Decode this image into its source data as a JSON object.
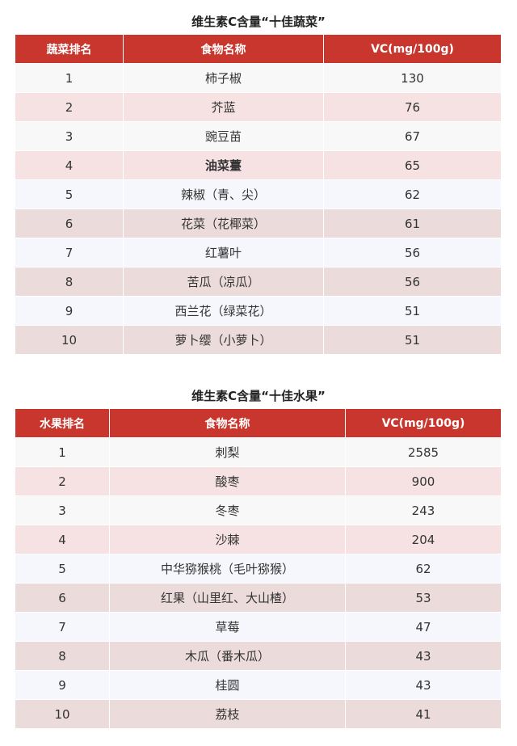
{
  "tables": [
    {
      "title": "维生素C含量“十佳蔬菜”",
      "header": [
        "蔬菜排名",
        "食物名称",
        "VC(mg/100g)"
      ],
      "rows": [
        [
          "1",
          "柿子椒",
          "130"
        ],
        [
          "2",
          "芥蓝",
          "76"
        ],
        [
          "3",
          "豌豆苗",
          "67"
        ],
        [
          "4",
          "油菜薹",
          "65"
        ],
        [
          "5",
          "辣椒（青、尖）",
          "62"
        ],
        [
          "6",
          "花菜（花椰菜）",
          "61"
        ],
        [
          "7",
          "红薯叶",
          "56"
        ],
        [
          "8",
          "苦瓜（凉瓜）",
          "56"
        ],
        [
          "9",
          "西兰花（绿菜花）",
          "51"
        ],
        [
          "10",
          "萝卜缨（小萝卜）",
          "51"
        ]
      ]
    },
    {
      "title": "维生素C含量“十佳水果”",
      "header": [
        "水果排名",
        "食物名称",
        "VC(mg/100g)"
      ],
      "rows": [
        [
          "1",
          "刺梨",
          "2585"
        ],
        [
          "2",
          "酸枣",
          "900"
        ],
        [
          "3",
          "冬枣",
          "243"
        ],
        [
          "4",
          "沙棘",
          "204"
        ],
        [
          "5",
          "中华猕猴桃（毛叶猕猴）",
          "62"
        ],
        [
          "6",
          "红果（山里红、大山楂）",
          "53"
        ],
        [
          "7",
          "草莓",
          "47"
        ],
        [
          "8",
          "木瓜（番木瓜）",
          "43"
        ],
        [
          "9",
          "桂圆",
          "43"
        ],
        [
          "10",
          "荔枝",
          "41"
        ]
      ]
    }
  ]
}
